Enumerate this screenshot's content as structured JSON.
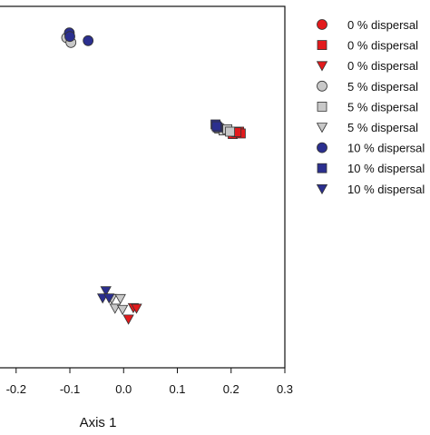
{
  "chart_data": {
    "type": "scatter",
    "title": "",
    "xlabel": "Axis 1",
    "ylabel": "",
    "xlim": [
      -0.23,
      0.3
    ],
    "ylim": [
      -0.3,
      0.3
    ],
    "x_ticks": [
      -0.2,
      -0.1,
      0.0,
      0.1,
      0.2,
      0.3
    ],
    "x_tick_labels": [
      "-0.2",
      "-0.1",
      "0.0",
      "0.1",
      "0.2",
      "0.3"
    ],
    "grid": false,
    "legend_position": "right",
    "series": [
      {
        "name": "0 % dispersal",
        "marker": "circle",
        "color": "#e31a1c",
        "points": []
      },
      {
        "name": "0 % dispersal",
        "marker": "square",
        "color": "#e31a1c",
        "points": [
          {
            "x": 0.203,
            "y": 0.088
          },
          {
            "x": 0.215,
            "y": 0.092
          },
          {
            "x": 0.218,
            "y": 0.089
          },
          {
            "x": 0.21,
            "y": 0.091
          }
        ]
      },
      {
        "name": "0 % dispersal",
        "marker": "triangle-down",
        "color": "#e31a1c",
        "points": [
          {
            "x": 0.018,
            "y": -0.2
          },
          {
            "x": 0.024,
            "y": -0.201
          },
          {
            "x": 0.009,
            "y": -0.219
          }
        ]
      },
      {
        "name": "5 % dispersal",
        "marker": "circle",
        "color": "#c8c8c8",
        "points": [
          {
            "x": -0.106,
            "y": 0.248
          },
          {
            "x": -0.098,
            "y": 0.24
          }
        ]
      },
      {
        "name": "5 % dispersal",
        "marker": "square",
        "color": "#c8c8c8",
        "points": [
          {
            "x": 0.178,
            "y": 0.097
          },
          {
            "x": 0.186,
            "y": 0.094
          },
          {
            "x": 0.193,
            "y": 0.096
          },
          {
            "x": 0.198,
            "y": 0.092
          }
        ]
      },
      {
        "name": "5 % dispersal",
        "marker": "triangle-down",
        "color": "#c8c8c8",
        "points": [
          {
            "x": -0.022,
            "y": -0.185
          },
          {
            "x": -0.006,
            "y": -0.185
          },
          {
            "x": -0.016,
            "y": -0.201
          },
          {
            "x": -0.002,
            "y": -0.203
          }
        ]
      },
      {
        "name": "10 % dispersal",
        "marker": "circle",
        "color": "#2b2f8f",
        "points": [
          {
            "x": -0.101,
            "y": 0.256
          },
          {
            "x": -0.1,
            "y": 0.25
          },
          {
            "x": -0.066,
            "y": 0.243
          }
        ]
      },
      {
        "name": "10 % dispersal",
        "marker": "square",
        "color": "#2b2f8f",
        "points": [
          {
            "x": 0.171,
            "y": 0.104
          },
          {
            "x": 0.175,
            "y": 0.099
          },
          {
            "x": 0.173,
            "y": 0.101
          }
        ]
      },
      {
        "name": "10 % dispersal",
        "marker": "triangle-down",
        "color": "#2b2f8f",
        "points": [
          {
            "x": -0.033,
            "y": -0.172
          },
          {
            "x": -0.039,
            "y": -0.184
          },
          {
            "x": -0.027,
            "y": -0.184
          }
        ]
      }
    ]
  }
}
